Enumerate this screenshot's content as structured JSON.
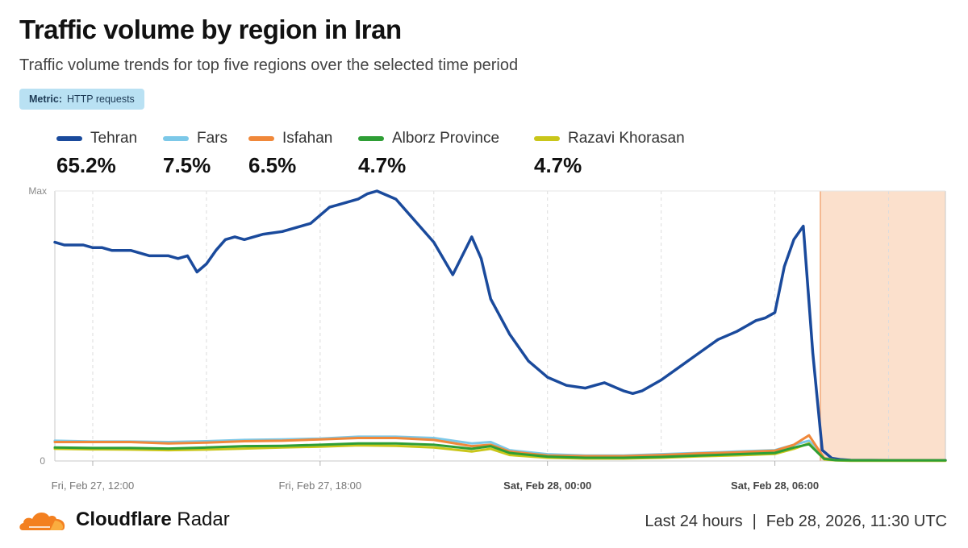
{
  "header": {
    "title": "Traffic volume by region in Iran",
    "subtitle": "Traffic volume trends for top five regions over the selected time period",
    "metric_key": "Metric:",
    "metric_value": "HTTP requests"
  },
  "legend": [
    {
      "name": "Tehran",
      "pct": "65.2%",
      "color": "#1a4a9c"
    },
    {
      "name": "Fars",
      "pct": "7.5%",
      "color": "#7cc8e8"
    },
    {
      "name": "Isfahan",
      "pct": "6.5%",
      "color": "#f0883a"
    },
    {
      "name": "Alborz Province",
      "pct": "4.7%",
      "color": "#2e9e35"
    },
    {
      "name": "Razavi Khorasan",
      "pct": "4.7%",
      "color": "#c9c61a"
    }
  ],
  "footer": {
    "brand_bold": "Cloudflare",
    "brand_rest": "Radar",
    "range": "Last 24 hours",
    "separator": "|",
    "timestamp": "Feb 28, 2026, 11:30 UTC"
  },
  "chart_data": {
    "type": "line",
    "ylabel": "",
    "xlabel": "",
    "y_tick_labels": [
      "Max",
      "0"
    ],
    "ylim": [
      0,
      100
    ],
    "x_range_hours": [
      -1,
      22.5
    ],
    "x_ticks": [
      {
        "hour": 0,
        "label": "Fri, Feb 27, 12:00",
        "bold": false
      },
      {
        "hour": 6,
        "label": "Fri, Feb 27, 18:00",
        "bold": false
      },
      {
        "hour": 12,
        "label": "Sat, Feb 28, 00:00",
        "bold": true
      },
      {
        "hour": 18,
        "label": "Sat, Feb 28, 06:00",
        "bold": true
      }
    ],
    "highlight_hours": [
      19.2,
      22.5
    ],
    "highlight_color": "#fbe0cc",
    "grid": true,
    "series": [
      {
        "name": "Tehran",
        "color": "#1a4a9c",
        "width": 3.5,
        "x": [
          -1,
          -0.75,
          -0.25,
          0,
          0.25,
          0.5,
          1,
          1.25,
          1.5,
          2,
          2.25,
          2.5,
          2.75,
          3,
          3.25,
          3.5,
          3.75,
          4,
          4.25,
          4.5,
          5,
          5.5,
          5.75,
          6,
          6.25,
          6.5,
          7,
          7.25,
          7.5,
          8,
          8.5,
          9,
          9.5,
          10,
          10.25,
          10.5,
          11,
          11.5,
          12,
          12.5,
          13,
          13.25,
          13.5,
          14,
          14.25,
          14.5,
          15,
          15.5,
          16,
          16.5,
          17,
          17.25,
          17.5,
          17.75,
          18,
          18.25,
          18.5,
          18.75,
          19,
          19.25,
          19.5,
          19.75,
          20,
          21,
          22,
          22.5
        ],
        "y": [
          81,
          80,
          80,
          79,
          79,
          78,
          78,
          77,
          76,
          76,
          75,
          76,
          70,
          73,
          78,
          82,
          83,
          82,
          83,
          84,
          85,
          87,
          88,
          91,
          94,
          95,
          97,
          99,
          100,
          97,
          89,
          81,
          69,
          83,
          75,
          60,
          47,
          37,
          31,
          28,
          27,
          28,
          29,
          26,
          25,
          26,
          30,
          35,
          40,
          45,
          48,
          50,
          52,
          53,
          55,
          72,
          82,
          87,
          40,
          4,
          1,
          0.5,
          0.3,
          0.2,
          0.2,
          0.2
        ]
      },
      {
        "name": "Fars",
        "color": "#7cc8e8",
        "width": 3,
        "x": [
          -1,
          0,
          1,
          2,
          3,
          4,
          5,
          6,
          7,
          8,
          9,
          10,
          10.5,
          11,
          12,
          13,
          14,
          15,
          16,
          17,
          18,
          18.5,
          18.9,
          19.3,
          19.6,
          20,
          21,
          22,
          22.5
        ],
        "y": [
          7.5,
          7.2,
          7.2,
          7,
          7.3,
          7.8,
          8,
          8.3,
          9,
          9,
          8.5,
          6.5,
          7,
          4,
          2.5,
          2,
          2,
          2.5,
          3,
          3.5,
          4,
          6,
          7.5,
          1,
          0.3,
          0.2,
          0.2,
          0.2,
          0.2
        ]
      },
      {
        "name": "Isfahan",
        "color": "#f0883a",
        "width": 3,
        "x": [
          -1,
          0,
          1,
          2,
          3,
          4,
          5,
          6,
          7,
          8,
          9,
          10,
          10.5,
          11,
          12,
          13,
          14,
          15,
          16,
          17,
          18,
          18.5,
          18.9,
          19.3,
          19.6,
          20,
          21,
          22,
          22.5
        ],
        "y": [
          7,
          7,
          7,
          6.5,
          6.8,
          7.3,
          7.5,
          8,
          8.5,
          8.5,
          7.8,
          5.5,
          6,
          3.5,
          2,
          1.8,
          1.8,
          2.2,
          2.8,
          3.2,
          3.8,
          6,
          9.5,
          1,
          0.3,
          0.2,
          0.2,
          0.2,
          0.2
        ]
      },
      {
        "name": "Razavi Khorasan",
        "color": "#c9c61a",
        "width": 3,
        "x": [
          -1,
          0,
          1,
          2,
          3,
          4,
          5,
          6,
          7,
          8,
          9,
          10,
          10.5,
          11,
          12,
          13,
          14,
          15,
          16,
          17,
          18,
          18.5,
          18.9,
          19.3,
          19.6,
          20,
          21,
          22,
          22.5
        ],
        "y": [
          4.5,
          4.3,
          4.2,
          4,
          4.2,
          4.6,
          5,
          5.3,
          5.8,
          5.6,
          5,
          3.5,
          4.5,
          2.2,
          1.2,
          0.9,
          0.9,
          1.2,
          1.7,
          2.1,
          2.6,
          4.5,
          6.5,
          0.6,
          0.2,
          0.1,
          0.1,
          0.1,
          0.1
        ]
      },
      {
        "name": "Alborz Province",
        "color": "#2e9e35",
        "width": 3,
        "x": [
          -1,
          0,
          1,
          2,
          3,
          4,
          5,
          6,
          7,
          8,
          9,
          10,
          10.5,
          11,
          12,
          13,
          14,
          15,
          16,
          17,
          18,
          18.5,
          18.9,
          19.3,
          19.6,
          20,
          21,
          22,
          22.5
        ],
        "y": [
          5,
          4.8,
          4.8,
          4.6,
          5,
          5.5,
          5.6,
          6,
          6.5,
          6.5,
          6,
          4.5,
          5.5,
          3,
          1.6,
          1.2,
          1.2,
          1.5,
          2,
          2.5,
          3,
          5,
          6.2,
          0.8,
          0.3,
          0.2,
          0.2,
          0.2,
          0.2
        ]
      }
    ]
  }
}
